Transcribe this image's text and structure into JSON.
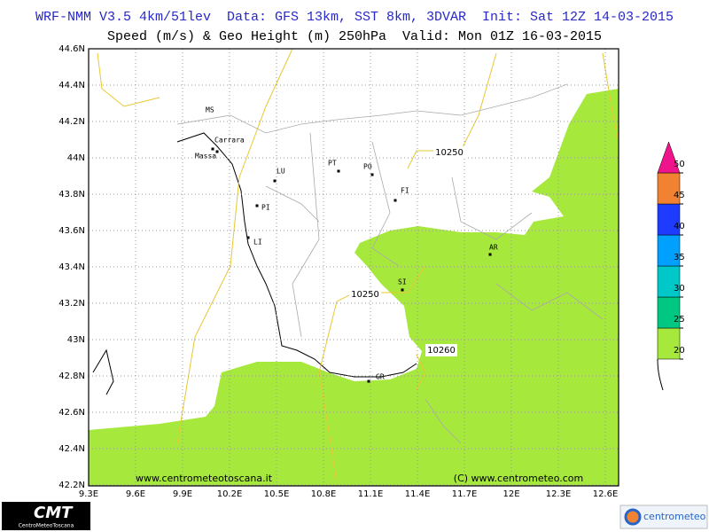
{
  "header": {
    "title": "WRF-NMM V3.5 4km/51lev  Data: GFS 13km, SST 8km, 3DVAR  Init: Sat 12Z 14-03-2015",
    "subtitle": "Speed (m/s) & Geo Height (m) 250hPa  Valid: Mon 01Z 16-03-2015"
  },
  "map": {
    "lat_ticks": [
      {
        "value": 44.6,
        "label": "44.6N"
      },
      {
        "value": 44.4,
        "label": "44.4N"
      },
      {
        "value": 44.2,
        "label": "44.2N"
      },
      {
        "value": 44,
        "label": "44N"
      },
      {
        "value": 43.8,
        "label": "43.8N"
      },
      {
        "value": 43.6,
        "label": "43.6N"
      },
      {
        "value": 43.4,
        "label": "43.4N"
      },
      {
        "value": 43.2,
        "label": "43.2N"
      },
      {
        "value": 43,
        "label": "43N"
      },
      {
        "value": 42.8,
        "label": "42.8N"
      },
      {
        "value": 42.6,
        "label": "42.6N"
      },
      {
        "value": 42.4,
        "label": "42.4N"
      },
      {
        "value": 42.2,
        "label": "42.2N"
      }
    ],
    "lon_ticks": [
      {
        "value": 9.3,
        "label": "9.3E"
      },
      {
        "value": 9.6,
        "label": "9.6E"
      },
      {
        "value": 9.9,
        "label": "9.9E"
      },
      {
        "value": 10.2,
        "label": "10.2E"
      },
      {
        "value": 10.5,
        "label": "10.5E"
      },
      {
        "value": 10.8,
        "label": "10.8E"
      },
      {
        "value": 11.1,
        "label": "11.1E"
      },
      {
        "value": 11.4,
        "label": "11.4E"
      },
      {
        "value": 11.7,
        "label": "11.7E"
      },
      {
        "value": 12,
        "label": "12E"
      },
      {
        "value": 12.3,
        "label": "12.3E"
      },
      {
        "value": 12.6,
        "label": "12.6E"
      }
    ],
    "cities": [
      "MS",
      "Carrara",
      "Massa",
      "LU",
      "PT",
      "PO",
      "FI",
      "PI",
      "LI",
      "AR",
      "SI",
      "GR"
    ],
    "contour_labels": [
      "10250",
      "10250",
      "10260"
    ],
    "credits": [
      "www.centrometeotoscana.it",
      "(C) www.centrometeo.com"
    ]
  },
  "colorbar": {
    "ticks": [
      20,
      25,
      30,
      35,
      40,
      45,
      50
    ],
    "colors": [
      "#a6e83c",
      "#00c882",
      "#00c8c8",
      "#00a0ff",
      "#1e3cff",
      "#f08232",
      "#f0148c"
    ]
  },
  "logos": {
    "left": "CMT",
    "left_sub": "CentroMeteoToscana",
    "right": "centrometeo"
  }
}
